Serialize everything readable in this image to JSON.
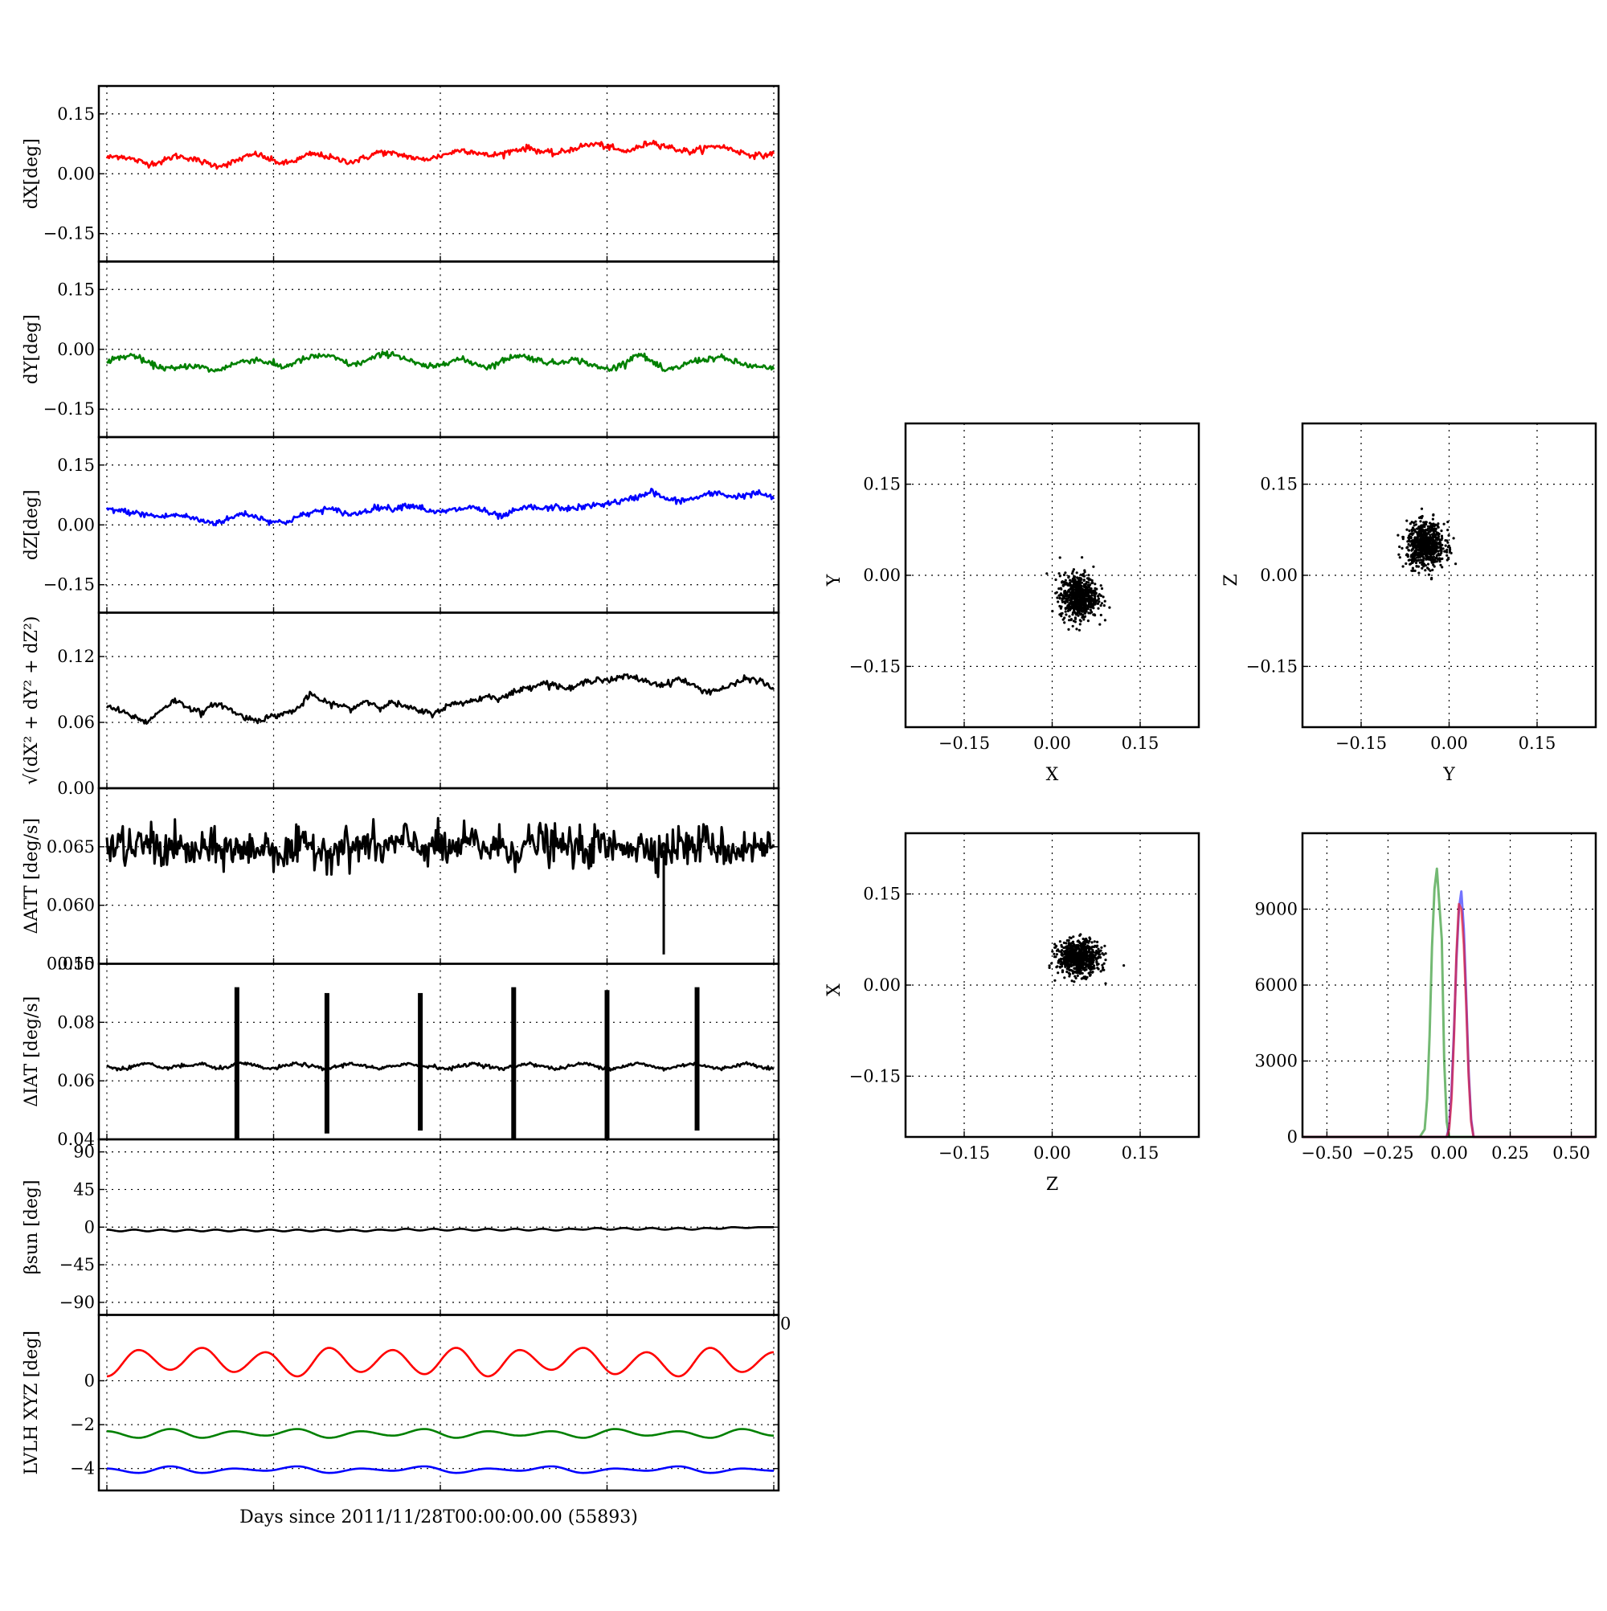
{
  "colors": {
    "red": "#ff0000",
    "green": "#008000",
    "blue": "#0000ff",
    "black": "#000000"
  },
  "footer": {
    "xlabel": "Days since 2011/11/28T00:00:00.00 (55893)"
  },
  "chart_data": [
    {
      "id": "dx",
      "type": "line",
      "ylabel": "dX[deg]",
      "ylim": [
        -0.22,
        0.22
      ],
      "yticks": [
        "0.15",
        "0.00",
        "−0.15"
      ],
      "ytick_values": [
        0.15,
        0.0,
        -0.15
      ],
      "grid": true,
      "xticks": 5,
      "series": [
        {
          "color": "red",
          "values": [
            0.04,
            0.045,
            0.035,
            0.025,
            0.03,
            0.045,
            0.04,
            0.03,
            0.02,
            0.025,
            0.04,
            0.05,
            0.035,
            0.025,
            0.035,
            0.05,
            0.045,
            0.035,
            0.03,
            0.04,
            0.055,
            0.05,
            0.045,
            0.035,
            0.04,
            0.05,
            0.06,
            0.055,
            0.045,
            0.05,
            0.06,
            0.065,
            0.055,
            0.05,
            0.06,
            0.07,
            0.075,
            0.065,
            0.055,
            0.065,
            0.08,
            0.07,
            0.06,
            0.055,
            0.065,
            0.07,
            0.06,
            0.05,
            0.045,
            0.05
          ]
        }
      ]
    },
    {
      "id": "dy",
      "type": "line",
      "ylabel": "dY[deg]",
      "ylim": [
        -0.22,
        0.22
      ],
      "yticks": [
        "0.15",
        "0.00",
        "−0.15"
      ],
      "ytick_values": [
        0.15,
        0.0,
        -0.15
      ],
      "grid": true,
      "xticks": 5,
      "series": [
        {
          "color": "green",
          "values": [
            -0.03,
            -0.02,
            -0.015,
            -0.035,
            -0.045,
            -0.05,
            -0.04,
            -0.045,
            -0.055,
            -0.04,
            -0.03,
            -0.025,
            -0.035,
            -0.045,
            -0.03,
            -0.02,
            -0.015,
            -0.025,
            -0.04,
            -0.03,
            -0.015,
            -0.01,
            -0.025,
            -0.04,
            -0.045,
            -0.03,
            -0.025,
            -0.035,
            -0.045,
            -0.03,
            -0.015,
            -0.02,
            -0.03,
            -0.035,
            -0.025,
            -0.03,
            -0.045,
            -0.05,
            -0.035,
            -0.01,
            -0.03,
            -0.055,
            -0.045,
            -0.03,
            -0.025,
            -0.02,
            -0.03,
            -0.04,
            -0.045,
            -0.05
          ]
        }
      ]
    },
    {
      "id": "dz",
      "type": "line",
      "ylabel": "dZ[deg]",
      "ylim": [
        -0.22,
        0.22
      ],
      "yticks": [
        "0.15",
        "0.00",
        "−0.15"
      ],
      "ytick_values": [
        0.15,
        0.0,
        -0.15
      ],
      "grid": true,
      "xticks": 5,
      "series": [
        {
          "color": "blue",
          "values": [
            0.04,
            0.035,
            0.03,
            0.025,
            0.02,
            0.025,
            0.02,
            0.01,
            0.005,
            0.015,
            0.03,
            0.02,
            0.01,
            0.005,
            0.02,
            0.03,
            0.04,
            0.035,
            0.025,
            0.035,
            0.045,
            0.04,
            0.05,
            0.045,
            0.03,
            0.035,
            0.04,
            0.045,
            0.03,
            0.02,
            0.035,
            0.045,
            0.04,
            0.045,
            0.04,
            0.045,
            0.05,
            0.055,
            0.06,
            0.07,
            0.085,
            0.065,
            0.06,
            0.065,
            0.075,
            0.08,
            0.07,
            0.075,
            0.08,
            0.065
          ]
        }
      ]
    },
    {
      "id": "rss",
      "type": "line",
      "ylabel": "√(dX² + dY² + dZ²)",
      "ylim": [
        0.0,
        0.16
      ],
      "yticks": [
        "0.12",
        "0.06",
        "0.00"
      ],
      "ytick_values": [
        0.12,
        0.06,
        0.0
      ],
      "grid": true,
      "xticks": 5,
      "series": [
        {
          "color": "black",
          "values": [
            0.075,
            0.07,
            0.065,
            0.06,
            0.072,
            0.08,
            0.074,
            0.068,
            0.078,
            0.072,
            0.065,
            0.062,
            0.065,
            0.068,
            0.072,
            0.086,
            0.078,
            0.076,
            0.072,
            0.08,
            0.074,
            0.078,
            0.074,
            0.07,
            0.068,
            0.075,
            0.078,
            0.08,
            0.084,
            0.082,
            0.088,
            0.092,
            0.096,
            0.094,
            0.09,
            0.096,
            0.1,
            0.098,
            0.102,
            0.1,
            0.096,
            0.094,
            0.1,
            0.094,
            0.088,
            0.09,
            0.094,
            0.1,
            0.098,
            0.09
          ]
        }
      ]
    },
    {
      "id": "datt",
      "type": "line",
      "ylabel": "ΔATT [deg/s]",
      "ylim": [
        0.055,
        0.07
      ],
      "yticks": [
        "0.065",
        "0.060",
        "0.055"
      ],
      "ytick_values": [
        0.065,
        0.06,
        0.055
      ],
      "grid": true,
      "xticks": 5,
      "series": [
        {
          "color": "black",
          "values": [
            0.0649,
            0.0652,
            0.0647,
            0.0655,
            0.0646,
            0.0651,
            0.0644,
            0.0648,
            0.0646,
            0.065,
            0.0645,
            0.0649,
            0.0651,
            0.0643,
            0.0647,
            0.0652,
            0.0646,
            0.065,
            0.0648,
            0.0653,
            0.0647,
            0.0651,
            0.0655,
            0.0649,
            0.0652,
            0.0646,
            0.065,
            0.0654,
            0.0648,
            0.0651,
            0.0647,
            0.0652,
            0.0655,
            0.0649,
            0.0651,
            0.0646,
            0.0652,
            0.0648,
            0.0654,
            0.0649,
            0.0651,
            0.0647,
            0.0652,
            0.0649,
            0.0655,
            0.065,
            0.0646,
            0.0651,
            0.0648,
            0.0652
          ]
        }
      ]
    },
    {
      "id": "diat",
      "type": "line",
      "ylabel": "ΔIAT [deg/s]",
      "ylim": [
        0.04,
        0.1
      ],
      "yticks": [
        "0.10",
        "0.08",
        "0.06",
        "0.04"
      ],
      "ytick_values": [
        0.1,
        0.08,
        0.06,
        0.04
      ],
      "grid": true,
      "xticks": 5,
      "series": [
        {
          "color": "black",
          "values": [
            0.065,
            0.064,
            0.065,
            0.066,
            0.064,
            0.065,
            0.065,
            0.066,
            0.064,
            0.065,
            0.066,
            0.065,
            0.064,
            0.065,
            0.066,
            0.065,
            0.064,
            0.065,
            0.066,
            0.065,
            0.064,
            0.065,
            0.066,
            0.065,
            0.065,
            0.064,
            0.065,
            0.066,
            0.065,
            0.064,
            0.065,
            0.066,
            0.065,
            0.064,
            0.065,
            0.066,
            0.065,
            0.064,
            0.065,
            0.066,
            0.065,
            0.064,
            0.065,
            0.066,
            0.065,
            0.064,
            0.065,
            0.066,
            0.065,
            0.064
          ]
        }
      ],
      "spikes": [
        {
          "x": 0.195,
          "low": 0.04,
          "high": 0.092
        },
        {
          "x": 0.33,
          "low": 0.042,
          "high": 0.09
        },
        {
          "x": 0.47,
          "low": 0.043,
          "high": 0.09
        },
        {
          "x": 0.61,
          "low": 0.04,
          "high": 0.092
        },
        {
          "x": 0.75,
          "low": 0.04,
          "high": 0.091
        },
        {
          "x": 0.885,
          "low": 0.043,
          "high": 0.092
        }
      ]
    },
    {
      "id": "beta",
      "type": "line",
      "ylabel": "βsun [deg]",
      "ylim": [
        -105,
        105
      ],
      "yticks": [
        "90",
        "45",
        "0",
        "−45",
        "−90"
      ],
      "ytick_values": [
        90,
        45,
        0,
        -45,
        -90
      ],
      "grid": true,
      "xticks": 5,
      "series": [
        {
          "color": "black",
          "values": [
            -3,
            -5,
            -3,
            -5,
            -3,
            -5,
            -3,
            -5,
            -3,
            -5,
            -3,
            -5,
            -3,
            -5,
            -3,
            -5,
            -3,
            -5,
            -3,
            -5,
            -3,
            -4,
            -2,
            -4,
            -2,
            -4,
            -2,
            -4,
            -2,
            -4,
            -2,
            -4,
            -2,
            -4,
            -2,
            -3,
            -1,
            -3,
            -1,
            -3,
            -1,
            -3,
            -1,
            -3,
            -1,
            -2,
            0,
            -1,
            0,
            0
          ]
        }
      ]
    },
    {
      "id": "lvlh",
      "type": "line",
      "ylabel": "LVLH XYZ [deg]",
      "ylim": [
        -5,
        3
      ],
      "yticks": [
        "0",
        "−2",
        "−4"
      ],
      "ytick_values": [
        0,
        -2,
        -4
      ],
      "corner_tick": "0",
      "grid": true,
      "xticks": 5,
      "series": [
        {
          "color": "red",
          "values": [
            0.2,
            1.4,
            0.5,
            1.5,
            0.4,
            1.3,
            0.2,
            1.5,
            0.4,
            1.4,
            0.3,
            1.5,
            0.2,
            1.4,
            0.5,
            1.5,
            0.3,
            1.3,
            0.2,
            1.5,
            0.4,
            1.3
          ]
        },
        {
          "color": "green",
          "values": [
            -2.3,
            -2.6,
            -2.2,
            -2.6,
            -2.3,
            -2.5,
            -2.2,
            -2.6,
            -2.3,
            -2.5,
            -2.2,
            -2.6,
            -2.3,
            -2.5,
            -2.3,
            -2.6,
            -2.2,
            -2.5,
            -2.3,
            -2.6,
            -2.2,
            -2.5
          ]
        },
        {
          "color": "blue",
          "values": [
            -4.0,
            -4.2,
            -3.9,
            -4.2,
            -4.0,
            -4.1,
            -3.9,
            -4.2,
            -4.0,
            -4.1,
            -3.9,
            -4.2,
            -4.0,
            -4.1,
            -3.9,
            -4.2,
            -4.0,
            -4.1,
            -3.9,
            -4.2,
            -4.0,
            -4.1
          ]
        }
      ]
    },
    {
      "id": "scatter_xy",
      "type": "scatter",
      "xlabel": "X",
      "ylabel": "Y",
      "xlim": [
        -0.25,
        0.25
      ],
      "ylim": [
        -0.25,
        0.25
      ],
      "xticks": [
        "−0.15",
        "0.00",
        "0.15"
      ],
      "xtick_values": [
        -0.15,
        0.0,
        0.15
      ],
      "yticks": [
        "0.15",
        "0.00",
        "−0.15"
      ],
      "ytick_values": [
        0.15,
        0.0,
        -0.15
      ],
      "grid": true,
      "cluster": {
        "x": 0.045,
        "y": -0.035,
        "sx": 0.016,
        "sy": 0.018
      }
    },
    {
      "id": "scatter_yz",
      "type": "scatter",
      "xlabel": "Y",
      "ylabel": "Z",
      "xlim": [
        -0.25,
        0.25
      ],
      "ylim": [
        -0.25,
        0.25
      ],
      "xticks": [
        "−0.15",
        "0.00",
        "0.15"
      ],
      "xtick_values": [
        -0.15,
        0.0,
        0.15
      ],
      "yticks": [
        "0.15",
        "0.00",
        "−0.15"
      ],
      "ytick_values": [
        0.15,
        0.0,
        -0.15
      ],
      "grid": true,
      "cluster": {
        "x": -0.04,
        "y": 0.05,
        "sx": 0.016,
        "sy": 0.018
      }
    },
    {
      "id": "scatter_zx",
      "type": "scatter",
      "xlabel": "Z",
      "ylabel": "X",
      "xlim": [
        -0.25,
        0.25
      ],
      "ylim": [
        -0.25,
        0.25
      ],
      "xticks": [
        "−0.15",
        "0.00",
        "0.15"
      ],
      "xtick_values": [
        -0.15,
        0.0,
        0.15
      ],
      "yticks": [
        "0.15",
        "0.00",
        "−0.15"
      ],
      "ytick_values": [
        0.15,
        0.0,
        -0.15
      ],
      "grid": true,
      "cluster": {
        "x": 0.045,
        "y": 0.045,
        "sx": 0.018,
        "sy": 0.014
      }
    },
    {
      "id": "histogram",
      "type": "line",
      "xlim": [
        -0.6,
        0.6
      ],
      "ylim": [
        0,
        12000
      ],
      "xticks": [
        "−0.50",
        "−0.25",
        "0.00",
        "0.25",
        "0.50"
      ],
      "xtick_values": [
        -0.5,
        -0.25,
        0.0,
        0.25,
        0.5
      ],
      "yticks": [
        "9000",
        "6000",
        "3000",
        "0"
      ],
      "ytick_values": [
        9000,
        6000,
        3000,
        0
      ],
      "grid": true,
      "series": [
        {
          "color": "green",
          "x": [
            -0.12,
            -0.1,
            -0.09,
            -0.08,
            -0.07,
            -0.06,
            -0.05,
            -0.04,
            -0.03,
            -0.02,
            -0.01,
            0.0
          ],
          "values": [
            0,
            300,
            1500,
            4000,
            7500,
            9800,
            10600,
            9200,
            7800,
            3000,
            600,
            0
          ]
        },
        {
          "color": "blue",
          "x": [
            -0.01,
            0.0,
            0.01,
            0.02,
            0.03,
            0.04,
            0.05,
            0.06,
            0.07,
            0.08,
            0.09,
            0.1
          ],
          "values": [
            0,
            400,
            1800,
            4200,
            7000,
            9000,
            9700,
            8200,
            5500,
            2600,
            700,
            0
          ]
        },
        {
          "color": "red",
          "x": [
            -0.01,
            0.0,
            0.01,
            0.02,
            0.03,
            0.04,
            0.05,
            0.06,
            0.07,
            0.08,
            0.09,
            0.1
          ],
          "values": [
            0,
            300,
            1500,
            4000,
            7200,
            9200,
            9000,
            7600,
            5200,
            2400,
            600,
            0
          ]
        }
      ]
    }
  ]
}
